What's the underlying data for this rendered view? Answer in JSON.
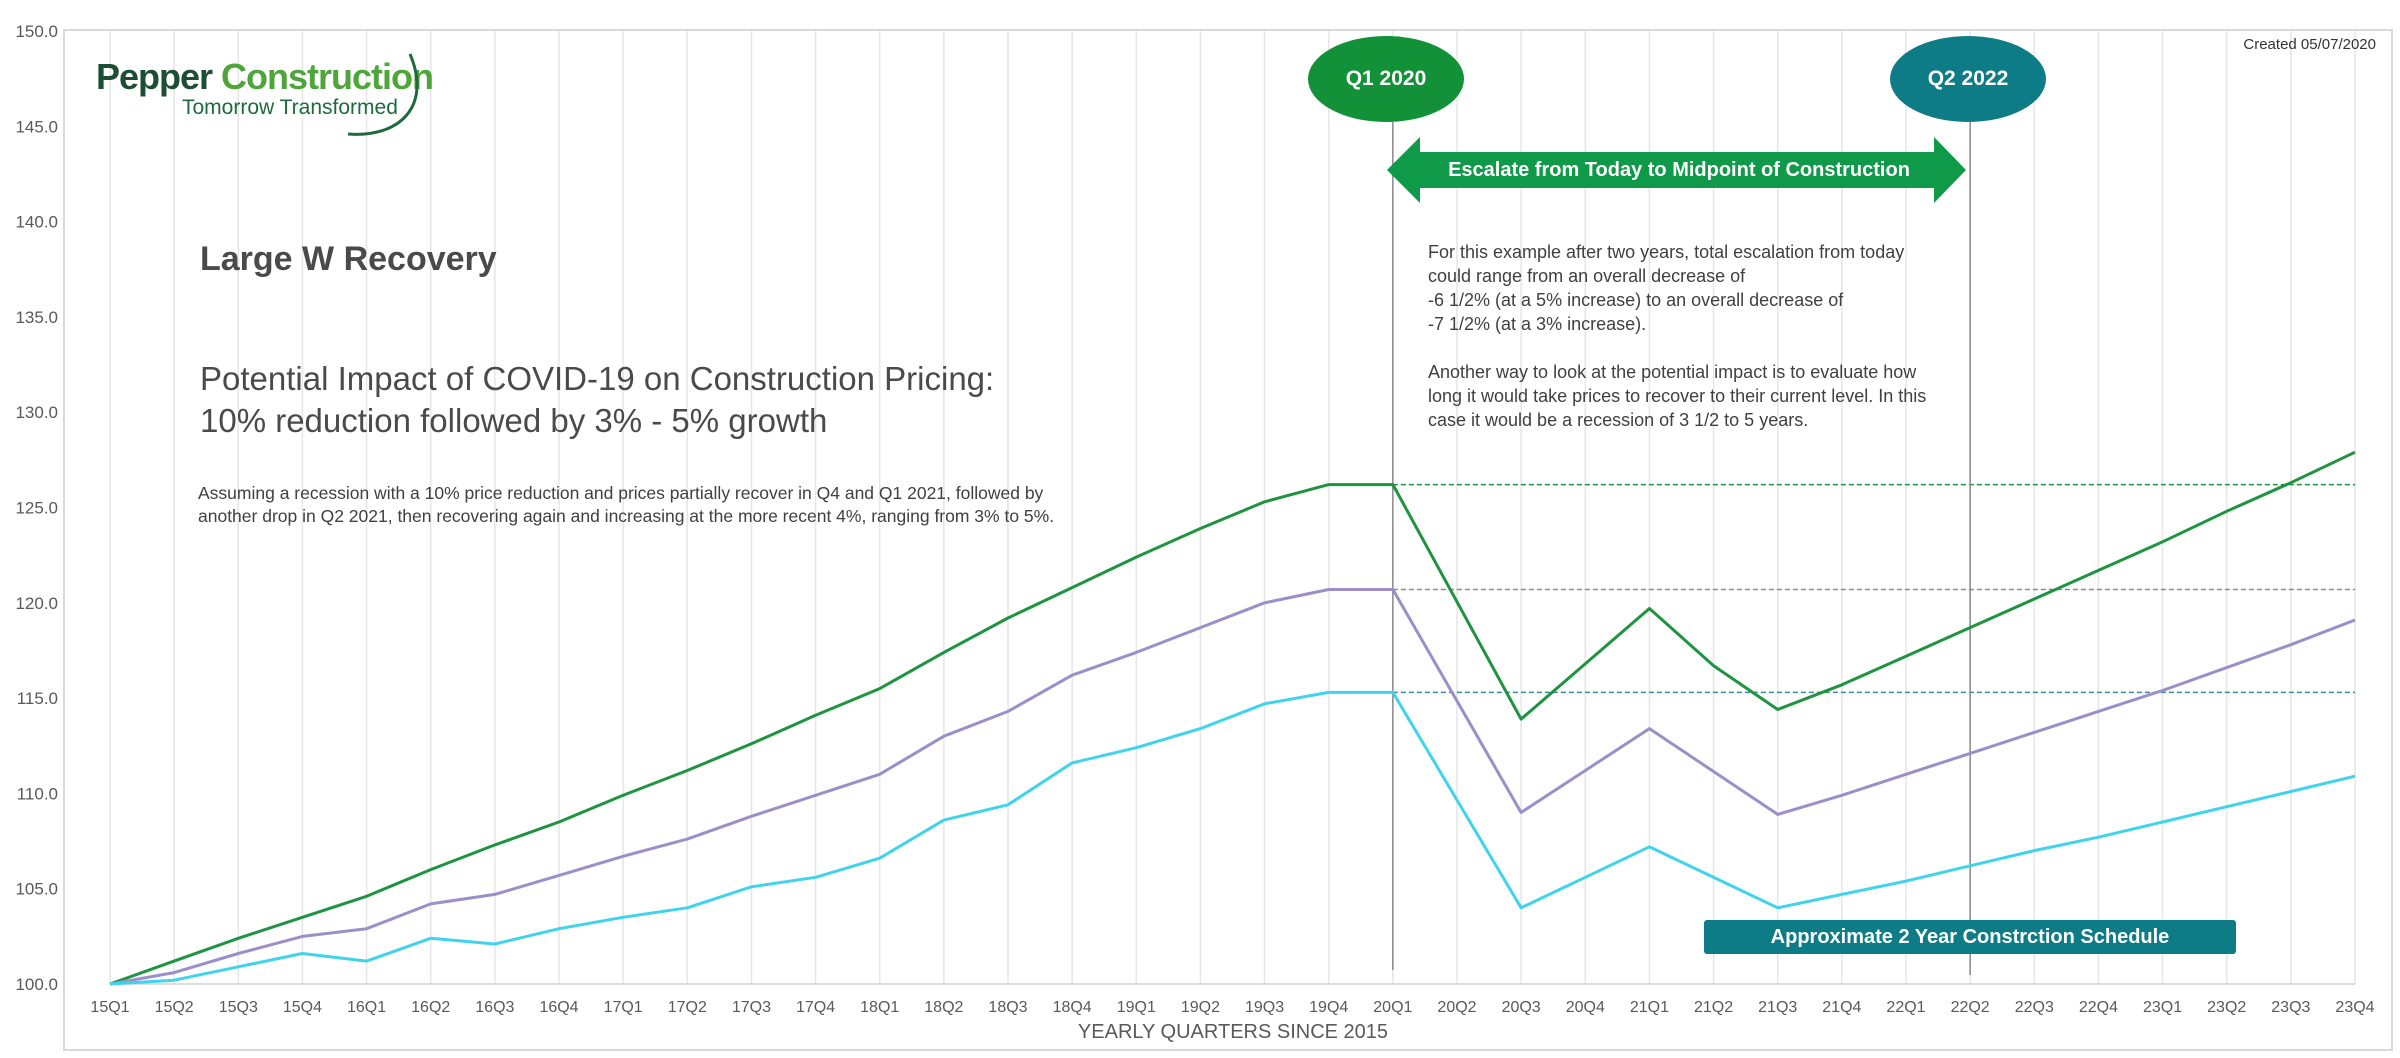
{
  "logo": {
    "name_part1": "Pepper ",
    "name_part2": "Construction",
    "tagline": "Tomorrow Transformed"
  },
  "created": "Created 05/07/2020",
  "heading": "Large W Recovery",
  "subheading_line1": "Potential Impact of COVID-19 on Construction Pricing:",
  "subheading_line2": "10% reduction followed by 3% - 5% growth",
  "description": "Assuming a recession with a 10% price reduction and prices partially recover in Q4 and Q1 2021, followed by another drop in Q2 2021, then recovering again and increasing at the more recent 4%, ranging from 3% to 5%.",
  "note": "For this example after two years, total escalation from today could range from an overall decrease of\n-6 1/2% (at a 5% increase) to an overall decrease of\n-7 1/2% (at a 3% increase).\n\nAnother way to look at the potential impact is to evaluate how long it would take prices to recover to their current level.  In this case it would be a recession of 3 1/2 to 5 years.",
  "markers": {
    "start": "Q1 2020",
    "end": "Q2 2022"
  },
  "escalate_label": "Escalate from Today to Midpoint of Construction",
  "schedule_label": "Approximate 2 Year Constrction Schedule",
  "colors": {
    "green": "#1e9440",
    "purple": "#9b8ec9",
    "cyan": "#3fd3ec",
    "marker_green": "#129138",
    "marker_teal": "#0e7c86",
    "arrow_green": "#0e9a48"
  },
  "chart_data": {
    "type": "line",
    "xlabel": "YEARLY QUARTERS SINCE 2015",
    "ylabel": "",
    "ylim": [
      100,
      150
    ],
    "yticks": [
      "100.0",
      "105.0",
      "110.0",
      "115.0",
      "120.0",
      "125.0",
      "130.0",
      "135.0",
      "140.0",
      "145.0",
      "150.0"
    ],
    "categories": [
      "15Q1",
      "15Q2",
      "15Q3",
      "15Q4",
      "16Q1",
      "16Q2",
      "16Q3",
      "16Q4",
      "17Q1",
      "17Q2",
      "17Q3",
      "17Q4",
      "18Q1",
      "18Q2",
      "18Q3",
      "18Q4",
      "19Q1",
      "19Q2",
      "19Q3",
      "19Q4",
      "20Q1",
      "20Q2",
      "20Q3",
      "20Q4",
      "21Q1",
      "21Q2",
      "21Q3",
      "21Q4",
      "22Q1",
      "22Q2",
      "22Q3",
      "22Q4",
      "23Q1",
      "23Q2",
      "23Q3",
      "23Q4"
    ],
    "grid": "vertical",
    "series": [
      {
        "color": "#1e9440",
        "values": [
          100.0,
          101.2,
          102.4,
          103.5,
          104.6,
          106.0,
          107.3,
          108.5,
          109.9,
          111.2,
          112.6,
          114.1,
          115.5,
          117.4,
          119.2,
          120.8,
          122.4,
          123.9,
          125.3,
          126.2,
          126.2,
          null,
          113.9,
          116.8,
          119.7,
          116.7,
          114.4,
          115.7,
          117.2,
          118.7,
          120.2,
          121.7,
          123.2,
          124.8,
          126.3,
          127.9
        ]
      },
      {
        "color": "#9b8ec9",
        "values": [
          100.0,
          100.6,
          101.6,
          102.5,
          102.9,
          104.2,
          104.7,
          105.7,
          106.7,
          107.6,
          108.8,
          109.9,
          111.0,
          113.0,
          114.3,
          116.2,
          117.4,
          118.7,
          120.0,
          120.7,
          120.7,
          null,
          109.0,
          111.2,
          113.4,
          null,
          108.9,
          109.9,
          111.0,
          112.1,
          113.2,
          114.3,
          115.4,
          116.6,
          117.8,
          119.1
        ]
      },
      {
        "color": "#3fd3ec",
        "values": [
          100.0,
          100.2,
          100.9,
          101.6,
          101.2,
          102.4,
          102.1,
          102.9,
          103.5,
          104.0,
          105.1,
          105.6,
          106.6,
          108.6,
          109.4,
          111.6,
          112.4,
          113.4,
          114.7,
          115.3,
          115.3,
          null,
          104.0,
          105.6,
          107.2,
          null,
          104.0,
          104.7,
          105.4,
          106.2,
          107.0,
          107.7,
          108.5,
          109.3,
          110.1,
          110.9
        ]
      }
    ],
    "reference_lines": [
      126.2,
      120.7,
      115.3
    ]
  }
}
